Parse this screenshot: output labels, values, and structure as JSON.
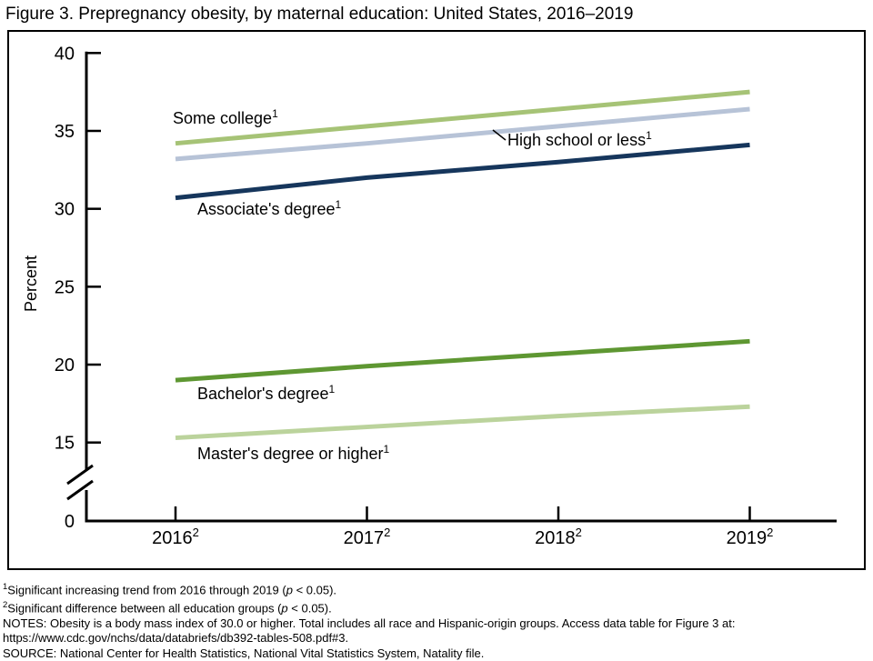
{
  "title": "Figure 3. Prepregnancy obesity, by maternal education: United States, 2016–2019",
  "chart_data": {
    "type": "line",
    "title": "Figure 3. Prepregnancy obesity, by maternal education: United States, 2016–2019",
    "ylabel": "Percent",
    "xlabel": "",
    "x_labels": [
      "2016",
      "2017",
      "2018",
      "2019"
    ],
    "x_label_sup": "2",
    "yticks": [
      40,
      35,
      30,
      25,
      20,
      15
    ],
    "y_origin_label": "0",
    "axis_break": true,
    "ylim": [
      0,
      40
    ],
    "ylim_shown": [
      15,
      40
    ],
    "grid": false,
    "legend_position": "inline-labels",
    "series": [
      {
        "id": "some-college",
        "label": "Some college",
        "label_sup": "1",
        "color": "#a6c376",
        "values": [
          34.2,
          35.3,
          36.4,
          37.5
        ]
      },
      {
        "id": "high-school-or-less",
        "label": "High school or less",
        "label_sup": "1",
        "color": "#b7c3d7",
        "values": [
          33.2,
          34.2,
          35.3,
          36.4
        ]
      },
      {
        "id": "associates-degree",
        "label": "Associate's degree",
        "label_sup": "1",
        "color": "#16365c",
        "values": [
          30.7,
          32.0,
          33.0,
          34.1
        ]
      },
      {
        "id": "bachelors-degree",
        "label": "Bachelor's degree",
        "label_sup": "1",
        "color": "#5e9732",
        "values": [
          19.0,
          19.9,
          20.7,
          21.5
        ]
      },
      {
        "id": "masters-degree-or-higher",
        "label": "Master's degree or higher",
        "label_sup": "1",
        "color": "#bbd39c",
        "values": [
          15.3,
          16.0,
          16.7,
          17.3
        ]
      }
    ]
  },
  "footnotes": {
    "fn1": {
      "sup": "1",
      "pre": "Significant increasing trend from 2016 through 2019 (",
      "p": "p",
      "post": " < 0.05)."
    },
    "fn2": {
      "sup": "2",
      "pre": "Significant difference between all education groups (",
      "p": "p",
      "post": " < 0.05)."
    },
    "notes_line1": "NOTES: Obesity is a body mass index of 30.0 or higher. Total includes all race and Hispanic-origin groups. Access data table for Figure 3 at:",
    "notes_line2": "https://www.cdc.gov/nchs/data/databriefs/db392-tables-508.pdf#3.",
    "source": "SOURCE: National Center for Health Statistics, National Vital Statistics System, Natality file."
  }
}
